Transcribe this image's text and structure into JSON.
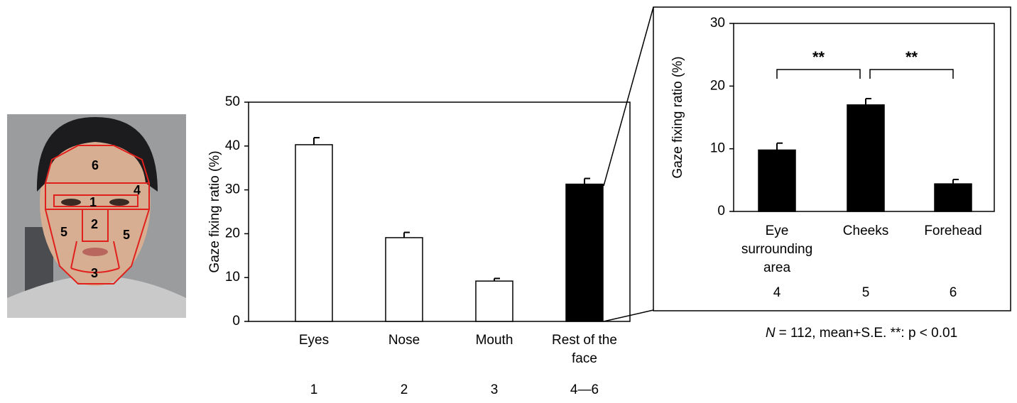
{
  "figure": {
    "face_labels": [
      "6",
      "4",
      "1",
      "2",
      "5",
      "5",
      "3"
    ]
  },
  "chart_data": [
    {
      "type": "bar",
      "y_label": "Gaze fixing ratio (%)",
      "categories": [
        "Eyes",
        "Nose",
        "Mouth",
        "Rest of the face"
      ],
      "region_numbers": [
        "1",
        "2",
        "3",
        "4—6"
      ],
      "values": [
        40.3,
        19.1,
        9.2,
        31.3
      ],
      "errors": [
        1.6,
        1.2,
        0.6,
        1.3
      ],
      "colors": [
        "#ffffff",
        "#ffffff",
        "#ffffff",
        "#000000"
      ],
      "ylim": [
        0,
        50
      ],
      "yticks": [
        0,
        10,
        20,
        30,
        40,
        50
      ]
    },
    {
      "type": "bar",
      "y_label": "Gaze fixing ratio (%)",
      "categories": [
        "Eye surrounding area",
        "Cheeks",
        "Forehead"
      ],
      "region_numbers": [
        "4",
        "5",
        "6"
      ],
      "values": [
        9.8,
        17.0,
        4.4
      ],
      "errors": [
        1.1,
        1.0,
        0.7
      ],
      "colors": [
        "#000000",
        "#000000",
        "#000000"
      ],
      "ylim": [
        0,
        30
      ],
      "yticks": [
        0,
        10,
        20,
        30
      ],
      "significance": [
        "**",
        "**"
      ],
      "note": [
        "N",
        "= 112, mean+S.E. **: p < 0.01"
      ]
    }
  ]
}
